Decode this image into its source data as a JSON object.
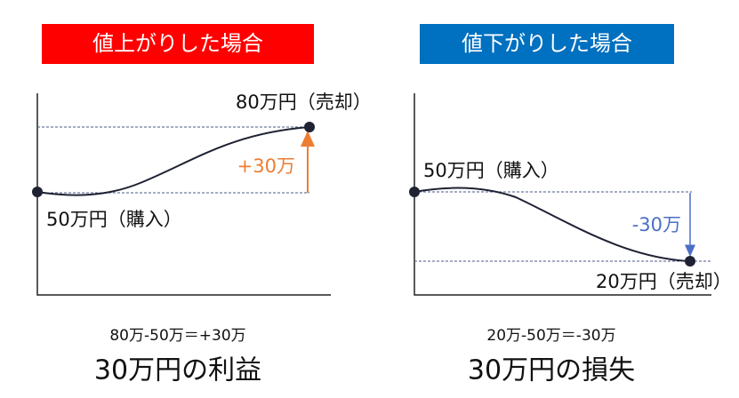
{
  "left": {
    "banner": "値上がりした場合",
    "sell_label": "80万円（売却）",
    "change_label": "+30万",
    "buy_label": "50万円（購入）",
    "formula": "80万-50万＝+30万",
    "result": "30万円の利益"
  },
  "right": {
    "banner": "値下がりした場合",
    "buy_label": "50万円（購入）",
    "change_label": "-30万",
    "sell_label": "20万円（売却）",
    "formula": "20万-50万＝-30万",
    "result": "30万円の損失"
  }
}
